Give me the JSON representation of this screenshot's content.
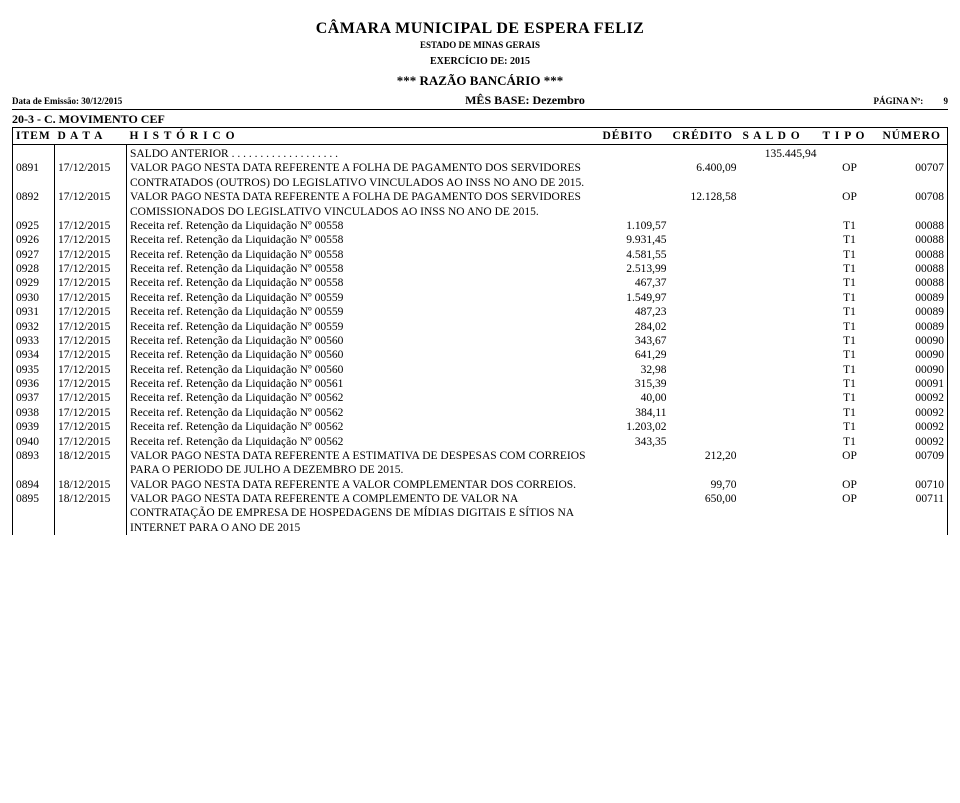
{
  "header": {
    "org": "CÂMARA MUNICIPAL DE ESPERA FELIZ",
    "state": "ESTADO DE MINAS GERAIS",
    "exercise": "EXERCÍCIO DE: 2015",
    "report_title": "***  RAZÃO BANCÁRIO  ***",
    "emission_label": "Data de Emissão: 30/12/2015",
    "month_label": "MÊS BASE: Dezembro",
    "page_label": "PÁGINA Nº:",
    "page_number": "9",
    "account": "20-3 - C. MOVIMENTO CEF"
  },
  "columns": {
    "item": "ITEM",
    "data": "D A T A",
    "hist": "H I S T Ó R I C O",
    "deb": "DÉBITO",
    "cred": "CRÉDITO",
    "saldo": "S A L D O",
    "tipo": "T I P O",
    "num": "NÚMERO"
  },
  "saldo_anterior": {
    "label": "SALDO ANTERIOR  . . . . . . . . . . . . . . . . . . .",
    "value": "135.445,94"
  },
  "rows": [
    {
      "item": "0891",
      "data": "17/12/2015",
      "hist": "VALOR PAGO NESTA DATA REFERENTE A FOLHA DE PAGAMENTO DOS SERVIDORES CONTRATADOS (OUTROS) DO LEGISLATIVO VINCULADOS AO INSS NO ANO DE 2015.",
      "deb": "",
      "cred": "6.400,09",
      "saldo": "",
      "tipo": "OP",
      "num": "00707"
    },
    {
      "item": "0892",
      "data": "17/12/2015",
      "hist": "VALOR PAGO NESTA DATA REFERENTE A FOLHA DE PAGAMENTO DOS SERVIDORES COMISSIONADOS DO LEGISLATIVO VINCULADOS AO INSS NO ANO DE 2015.",
      "deb": "",
      "cred": "12.128,58",
      "saldo": "",
      "tipo": "OP",
      "num": "00708"
    },
    {
      "item": "0925",
      "data": "17/12/2015",
      "hist": "Receita ref. Retenção da Liquidação Nº 00558",
      "deb": "1.109,57",
      "cred": "",
      "saldo": "",
      "tipo": "T1",
      "num": "00088"
    },
    {
      "item": "0926",
      "data": "17/12/2015",
      "hist": "Receita ref. Retenção da Liquidação Nº 00558",
      "deb": "9.931,45",
      "cred": "",
      "saldo": "",
      "tipo": "T1",
      "num": "00088"
    },
    {
      "item": "0927",
      "data": "17/12/2015",
      "hist": "Receita ref. Retenção da Liquidação Nº 00558",
      "deb": "4.581,55",
      "cred": "",
      "saldo": "",
      "tipo": "T1",
      "num": "00088"
    },
    {
      "item": "0928",
      "data": "17/12/2015",
      "hist": "Receita ref. Retenção da Liquidação Nº 00558",
      "deb": "2.513,99",
      "cred": "",
      "saldo": "",
      "tipo": "T1",
      "num": "00088"
    },
    {
      "item": "0929",
      "data": "17/12/2015",
      "hist": "Receita ref. Retenção da Liquidação Nº 00558",
      "deb": "467,37",
      "cred": "",
      "saldo": "",
      "tipo": "T1",
      "num": "00088"
    },
    {
      "item": "0930",
      "data": "17/12/2015",
      "hist": "Receita ref. Retenção da Liquidação Nº 00559",
      "deb": "1.549,97",
      "cred": "",
      "saldo": "",
      "tipo": "T1",
      "num": "00089"
    },
    {
      "item": "0931",
      "data": "17/12/2015",
      "hist": "Receita ref. Retenção da Liquidação Nº 00559",
      "deb": "487,23",
      "cred": "",
      "saldo": "",
      "tipo": "T1",
      "num": "00089"
    },
    {
      "item": "0932",
      "data": "17/12/2015",
      "hist": "Receita ref. Retenção da Liquidação Nº 00559",
      "deb": "284,02",
      "cred": "",
      "saldo": "",
      "tipo": "T1",
      "num": "00089"
    },
    {
      "item": "0933",
      "data": "17/12/2015",
      "hist": "Receita ref. Retenção da Liquidação Nº 00560",
      "deb": "343,67",
      "cred": "",
      "saldo": "",
      "tipo": "T1",
      "num": "00090"
    },
    {
      "item": "0934",
      "data": "17/12/2015",
      "hist": "Receita ref. Retenção da Liquidação Nº 00560",
      "deb": "641,29",
      "cred": "",
      "saldo": "",
      "tipo": "T1",
      "num": "00090"
    },
    {
      "item": "0935",
      "data": "17/12/2015",
      "hist": "Receita ref. Retenção da Liquidação Nº 00560",
      "deb": "32,98",
      "cred": "",
      "saldo": "",
      "tipo": "T1",
      "num": "00090"
    },
    {
      "item": "0936",
      "data": "17/12/2015",
      "hist": "Receita ref. Retenção da Liquidação Nº 00561",
      "deb": "315,39",
      "cred": "",
      "saldo": "",
      "tipo": "T1",
      "num": "00091"
    },
    {
      "item": "0937",
      "data": "17/12/2015",
      "hist": "Receita ref. Retenção da Liquidação Nº 00562",
      "deb": "40,00",
      "cred": "",
      "saldo": "",
      "tipo": "T1",
      "num": "00092"
    },
    {
      "item": "0938",
      "data": "17/12/2015",
      "hist": "Receita ref. Retenção da Liquidação Nº 00562",
      "deb": "384,11",
      "cred": "",
      "saldo": "",
      "tipo": "T1",
      "num": "00092"
    },
    {
      "item": "0939",
      "data": "17/12/2015",
      "hist": "Receita ref. Retenção da Liquidação Nº 00562",
      "deb": "1.203,02",
      "cred": "",
      "saldo": "",
      "tipo": "T1",
      "num": "00092"
    },
    {
      "item": "0940",
      "data": "17/12/2015",
      "hist": "Receita ref. Retenção da Liquidação Nº 00562",
      "deb": "343,35",
      "cred": "",
      "saldo": "",
      "tipo": "T1",
      "num": "00092"
    },
    {
      "item": "0893",
      "data": "18/12/2015",
      "hist": "VALOR PAGO NESTA DATA REFERENTE A ESTIMATIVA DE DESPESAS COM CORREIOS PARA O PERIODO DE JULHO A DEZEMBRO DE 2015.",
      "deb": "",
      "cred": "212,20",
      "saldo": "",
      "tipo": "OP",
      "num": "00709"
    },
    {
      "item": "0894",
      "data": "18/12/2015",
      "hist": "VALOR PAGO NESTA DATA REFERENTE A VALOR COMPLEMENTAR DOS CORREIOS.",
      "deb": "",
      "cred": "99,70",
      "saldo": "",
      "tipo": "OP",
      "num": "00710"
    },
    {
      "item": "0895",
      "data": "18/12/2015",
      "hist": "VALOR PAGO NESTA DATA REFERENTE A COMPLEMENTO DE VALOR NA CONTRATAÇÃO DE EMPRESA DE HOSPEDAGENS DE MÍDIAS DIGITAIS E SÍTIOS NA INTERNET PARA O ANO DE 2015",
      "deb": "",
      "cred": "650,00",
      "saldo": "",
      "tipo": "OP",
      "num": "00711"
    }
  ]
}
